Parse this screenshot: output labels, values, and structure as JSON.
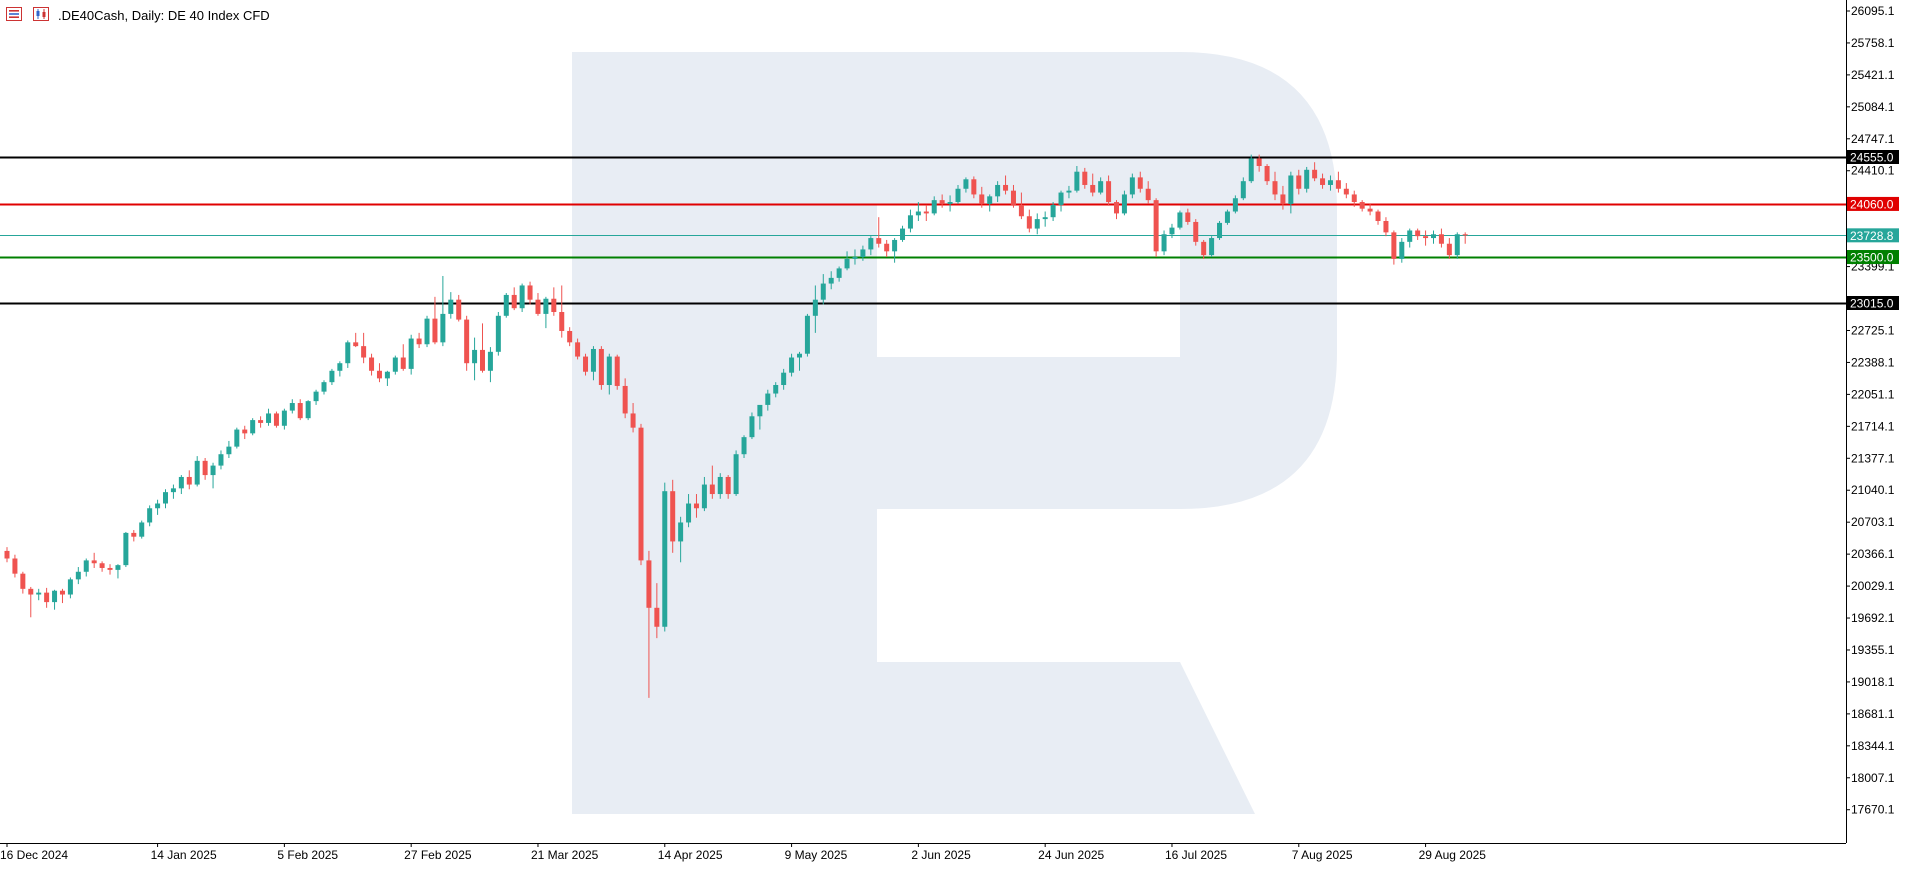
{
  "header": {
    "title": ".DE40Cash, Daily:  DE 40 Index CFD",
    "icons": [
      "menu-icon",
      "candles-icon"
    ]
  },
  "colors": {
    "bull": "#26a69a",
    "bear": "#ef5350",
    "resistance_outer": "#000000",
    "resistance_inner": "#e00000",
    "current_price": "#26a69a",
    "support_inner": "#008000",
    "support_outer": "#000000",
    "watermark": "#e8edf4"
  },
  "chart_data": {
    "type": "candlestick",
    "symbol": ".DE40Cash",
    "timeframe": "Daily",
    "instrument": "DE 40 Index CFD",
    "y_ticks": [
      "26095.1",
      "25758.1",
      "25421.1",
      "25084.1",
      "24747.1",
      "24410.1",
      "23399.1",
      "22725.1",
      "22388.1",
      "22051.1",
      "21714.1",
      "21377.1",
      "21040.1",
      "20703.1",
      "20366.1",
      "20029.1",
      "19692.1",
      "19355.1",
      "19018.1",
      "18681.1",
      "18344.1",
      "18007.1",
      "17670.1"
    ],
    "ylim": [
      17400,
      26180
    ],
    "x_labels": [
      {
        "label": "16 Dec 2024",
        "index": 0
      },
      {
        "label": "14 Jan 2025",
        "index": 19
      },
      {
        "label": "5 Feb 2025",
        "index": 35
      },
      {
        "label": "27 Feb 2025",
        "index": 51
      },
      {
        "label": "21 Mar 2025",
        "index": 67
      },
      {
        "label": "14 Apr 2025",
        "index": 83
      },
      {
        "label": "9 May 2025",
        "index": 99
      },
      {
        "label": "2 Jun 2025",
        "index": 115
      },
      {
        "label": "24 Jun 2025",
        "index": 131
      },
      {
        "label": "16 Jul 2025",
        "index": 147
      },
      {
        "label": "7 Aug 2025",
        "index": 163
      },
      {
        "label": "29 Aug 2025",
        "index": 179
      }
    ],
    "levels": [
      {
        "name": "resistance-outer",
        "value": 24555.0,
        "label": "24555.0",
        "color": "#000000"
      },
      {
        "name": "resistance-inner",
        "value": 24060.0,
        "label": "24060.0",
        "color": "#e00000"
      },
      {
        "name": "current-price",
        "value": 23728.8,
        "label": "23728.8",
        "color": "#26a69a"
      },
      {
        "name": "support-inner",
        "value": 23500.0,
        "label": "23500.0",
        "color": "#008000"
      },
      {
        "name": "support-outer",
        "value": 23015.0,
        "label": "23015.0",
        "color": "#000000"
      }
    ],
    "ohlc": [
      [
        20400,
        20440,
        20280,
        20320
      ],
      [
        20320,
        20360,
        20120,
        20160
      ],
      [
        20160,
        20180,
        19950,
        20000
      ],
      [
        20000,
        20020,
        19700,
        19940
      ],
      [
        19940,
        20000,
        19880,
        19960
      ],
      [
        19960,
        20010,
        19800,
        19860
      ],
      [
        19860,
        19990,
        19780,
        19980
      ],
      [
        19980,
        20000,
        19850,
        19940
      ],
      [
        19940,
        20120,
        19900,
        20100
      ],
      [
        20100,
        20230,
        20050,
        20180
      ],
      [
        20180,
        20320,
        20130,
        20300
      ],
      [
        20300,
        20380,
        20220,
        20270
      ],
      [
        20270,
        20290,
        20180,
        20220
      ],
      [
        20220,
        20260,
        20150,
        20200
      ],
      [
        20200,
        20260,
        20110,
        20250
      ],
      [
        20250,
        20600,
        20230,
        20590
      ],
      [
        20590,
        20620,
        20500,
        20550
      ],
      [
        20550,
        20720,
        20530,
        20700
      ],
      [
        20700,
        20880,
        20660,
        20850
      ],
      [
        20850,
        20940,
        20780,
        20900
      ],
      [
        20900,
        21050,
        20850,
        21020
      ],
      [
        21020,
        21100,
        20950,
        21060
      ],
      [
        21060,
        21200,
        21000,
        21180
      ],
      [
        21180,
        21250,
        21050,
        21100
      ],
      [
        21100,
        21400,
        21080,
        21350
      ],
      [
        21350,
        21380,
        21150,
        21200
      ],
      [
        21200,
        21330,
        21060,
        21300
      ],
      [
        21300,
        21460,
        21260,
        21420
      ],
      [
        21420,
        21560,
        21380,
        21500
      ],
      [
        21500,
        21700,
        21480,
        21680
      ],
      [
        21680,
        21720,
        21580,
        21640
      ],
      [
        21640,
        21800,
        21620,
        21780
      ],
      [
        21780,
        21820,
        21700,
        21750
      ],
      [
        21750,
        21900,
        21720,
        21850
      ],
      [
        21850,
        21870,
        21700,
        21720
      ],
      [
        21720,
        21900,
        21680,
        21880
      ],
      [
        21880,
        22000,
        21850,
        21960
      ],
      [
        21960,
        22000,
        21780,
        21800
      ],
      [
        21800,
        21990,
        21780,
        21980
      ],
      [
        21980,
        22100,
        21940,
        22080
      ],
      [
        22080,
        22200,
        22050,
        22180
      ],
      [
        22180,
        22320,
        22150,
        22300
      ],
      [
        22300,
        22400,
        22240,
        22380
      ],
      [
        22380,
        22620,
        22330,
        22600
      ],
      [
        22600,
        22700,
        22550,
        22560
      ],
      [
        22560,
        22700,
        22380,
        22440
      ],
      [
        22440,
        22480,
        22250,
        22300
      ],
      [
        22300,
        22380,
        22180,
        22220
      ],
      [
        22220,
        22300,
        22140,
        22290
      ],
      [
        22290,
        22460,
        22260,
        22440
      ],
      [
        22440,
        22580,
        22300,
        22320
      ],
      [
        22320,
        22680,
        22260,
        22640
      ],
      [
        22640,
        22700,
        22540,
        22580
      ],
      [
        22580,
        22880,
        22550,
        22850
      ],
      [
        22850,
        23080,
        22580,
        22600
      ],
      [
        22600,
        23300,
        22560,
        22900
      ],
      [
        22900,
        23130,
        22850,
        23050
      ],
      [
        23050,
        23100,
        22820,
        22840
      ],
      [
        22840,
        22880,
        22300,
        22380
      ],
      [
        22380,
        22650,
        22200,
        22520
      ],
      [
        22520,
        22800,
        22280,
        22300
      ],
      [
        22300,
        22550,
        22180,
        22500
      ],
      [
        22500,
        22920,
        22460,
        22880
      ],
      [
        22880,
        23120,
        22860,
        23100
      ],
      [
        23100,
        23180,
        22940,
        22960
      ],
      [
        22960,
        23220,
        22920,
        23200
      ],
      [
        23200,
        23240,
        23000,
        23050
      ],
      [
        23050,
        23120,
        22880,
        22900
      ],
      [
        22900,
        23080,
        22750,
        23060
      ],
      [
        23060,
        23180,
        22880,
        22920
      ],
      [
        22920,
        23200,
        22650,
        22720
      ],
      [
        22720,
        22760,
        22560,
        22600
      ],
      [
        22600,
        22640,
        22420,
        22450
      ],
      [
        22450,
        22480,
        22250,
        22290
      ],
      [
        22290,
        22560,
        22200,
        22530
      ],
      [
        22530,
        22560,
        22100,
        22150
      ],
      [
        22150,
        22480,
        22050,
        22450
      ],
      [
        22450,
        22470,
        22100,
        22140
      ],
      [
        22140,
        22220,
        21800,
        21850
      ],
      [
        21850,
        21960,
        21650,
        21700
      ],
      [
        21700,
        21740,
        20250,
        20300
      ],
      [
        20300,
        20400,
        18850,
        19800
      ],
      [
        19800,
        20060,
        19480,
        19600
      ],
      [
        19600,
        21120,
        19550,
        21030
      ],
      [
        21030,
        21150,
        20380,
        20500
      ],
      [
        20500,
        20760,
        20280,
        20700
      ],
      [
        20700,
        21000,
        20650,
        20900
      ],
      [
        20900,
        21000,
        20750,
        20850
      ],
      [
        20850,
        21180,
        20820,
        21100
      ],
      [
        21100,
        21300,
        20950,
        21000
      ],
      [
        21000,
        21220,
        20950,
        21180
      ],
      [
        21180,
        21200,
        20950,
        21000
      ],
      [
        21000,
        21460,
        20980,
        21420
      ],
      [
        21420,
        21620,
        21380,
        21600
      ],
      [
        21600,
        21860,
        21580,
        21820
      ],
      [
        21820,
        21920,
        21680,
        21940
      ],
      [
        21940,
        22100,
        21880,
        22060
      ],
      [
        22060,
        22180,
        22020,
        22150
      ],
      [
        22150,
        22320,
        22100,
        22280
      ],
      [
        22280,
        22480,
        22240,
        22440
      ],
      [
        22440,
        22500,
        22300,
        22480
      ],
      [
        22480,
        22900,
        22450,
        22880
      ],
      [
        22880,
        23200,
        22700,
        23050
      ],
      [
        23050,
        23320,
        23000,
        23220
      ],
      [
        23220,
        23350,
        23160,
        23280
      ],
      [
        23280,
        23400,
        23240,
        23380
      ],
      [
        23380,
        23560,
        23360,
        23480
      ],
      [
        23480,
        23580,
        23420,
        23500
      ],
      [
        23500,
        23620,
        23460,
        23580
      ],
      [
        23580,
        23720,
        23520,
        23700
      ],
      [
        23700,
        23920,
        23600,
        23640
      ],
      [
        23640,
        23680,
        23500,
        23560
      ],
      [
        23560,
        23700,
        23440,
        23680
      ],
      [
        23680,
        23830,
        23660,
        23800
      ],
      [
        23800,
        24000,
        23760,
        23940
      ],
      [
        23940,
        24080,
        23880,
        23980
      ],
      [
        23980,
        24050,
        23880,
        23960
      ],
      [
        23960,
        24140,
        23940,
        24100
      ],
      [
        24100,
        24160,
        24020,
        24060
      ],
      [
        24060,
        24150,
        23980,
        24080
      ],
      [
        24080,
        24260,
        24060,
        24220
      ],
      [
        24220,
        24340,
        24180,
        24320
      ],
      [
        24320,
        24350,
        24120,
        24160
      ],
      [
        24160,
        24240,
        24020,
        24060
      ],
      [
        24060,
        24160,
        23980,
        24140
      ],
      [
        24140,
        24300,
        24080,
        24260
      ],
      [
        24260,
        24360,
        24160,
        24200
      ],
      [
        24200,
        24260,
        24020,
        24050
      ],
      [
        24050,
        24180,
        23900,
        23930
      ],
      [
        23930,
        24000,
        23760,
        23800
      ],
      [
        23800,
        23960,
        23740,
        23900
      ],
      [
        23900,
        23980,
        23820,
        23920
      ],
      [
        23920,
        24080,
        23880,
        24050
      ],
      [
        24050,
        24200,
        23980,
        24180
      ],
      [
        24180,
        24250,
        24120,
        24200
      ],
      [
        24200,
        24460,
        24180,
        24400
      ],
      [
        24400,
        24440,
        24220,
        24260
      ],
      [
        24260,
        24380,
        24140,
        24180
      ],
      [
        24180,
        24340,
        24160,
        24300
      ],
      [
        24300,
        24360,
        24040,
        24080
      ],
      [
        24080,
        24100,
        23900,
        23960
      ],
      [
        23960,
        24200,
        23940,
        24160
      ],
      [
        24160,
        24380,
        24120,
        24340
      ],
      [
        24340,
        24400,
        24180,
        24220
      ],
      [
        24220,
        24300,
        24060,
        24100
      ],
      [
        24100,
        24120,
        23500,
        23560
      ],
      [
        23560,
        23780,
        23520,
        23740
      ],
      [
        23740,
        23850,
        23700,
        23810
      ],
      [
        23810,
        23990,
        23790,
        23970
      ],
      [
        23970,
        24010,
        23840,
        23870
      ],
      [
        23870,
        23900,
        23620,
        23660
      ],
      [
        23660,
        23680,
        23480,
        23520
      ],
      [
        23520,
        23720,
        23500,
        23700
      ],
      [
        23700,
        23880,
        23680,
        23860
      ],
      [
        23860,
        24000,
        23840,
        23980
      ],
      [
        23980,
        24150,
        23960,
        24120
      ],
      [
        24120,
        24340,
        24100,
        24300
      ],
      [
        24300,
        24580,
        24280,
        24540
      ],
      [
        24540,
        24580,
        24400,
        24460
      ],
      [
        24460,
        24480,
        24260,
        24300
      ],
      [
        24300,
        24400,
        24100,
        24160
      ],
      [
        24160,
        24250,
        24000,
        24060
      ],
      [
        24060,
        24400,
        23960,
        24360
      ],
      [
        24360,
        24420,
        24160,
        24220
      ],
      [
        24220,
        24450,
        24180,
        24420
      ],
      [
        24420,
        24500,
        24300,
        24330
      ],
      [
        24330,
        24380,
        24220,
        24260
      ],
      [
        24260,
        24360,
        24200,
        24310
      ],
      [
        24310,
        24400,
        24180,
        24220
      ],
      [
        24220,
        24280,
        24120,
        24160
      ],
      [
        24160,
        24200,
        24030,
        24080
      ],
      [
        24080,
        24100,
        23980,
        24010
      ],
      [
        24010,
        24060,
        23940,
        23980
      ],
      [
        23980,
        24000,
        23840,
        23880
      ],
      [
        23880,
        23920,
        23720,
        23760
      ],
      [
        23760,
        23780,
        23420,
        23480
      ],
      [
        23480,
        23700,
        23440,
        23660
      ],
      [
        23660,
        23800,
        23600,
        23780
      ],
      [
        23780,
        23800,
        23680,
        23720
      ],
      [
        23720,
        23780,
        23620,
        23700
      ],
      [
        23700,
        23780,
        23640,
        23740
      ],
      [
        23740,
        23800,
        23600,
        23640
      ],
      [
        23640,
        23700,
        23480,
        23520
      ],
      [
        23520,
        23760,
        23480,
        23740
      ],
      [
        23740,
        23760,
        23640,
        23728.8
      ]
    ]
  }
}
